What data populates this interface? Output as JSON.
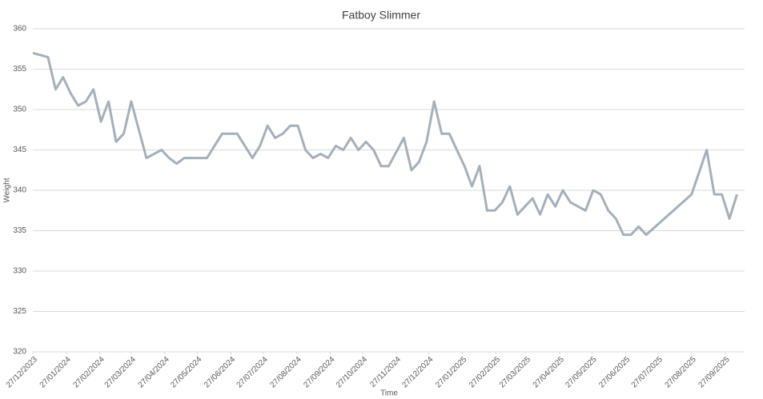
{
  "chart_data": {
    "type": "line",
    "title": "Fatboy Slimmer",
    "x_label": "Time",
    "y_label": "Weight",
    "x": [
      "27/12/2023",
      "10/01/2024",
      "17/01/2024",
      "24/01/2024",
      "31/01/2024",
      "07/02/2024",
      "14/02/2024",
      "21/02/2024",
      "28/02/2024",
      "06/03/2024",
      "13/03/2024",
      "20/03/2024",
      "27/03/2024",
      "10/04/2024",
      "24/04/2024",
      "01/05/2024",
      "08/05/2024",
      "15/05/2024",
      "05/06/2024",
      "19/06/2024",
      "03/07/2024",
      "17/07/2024",
      "24/07/2024",
      "31/07/2024",
      "07/08/2024",
      "14/08/2024",
      "21/08/2024",
      "28/08/2024",
      "04/09/2024",
      "11/09/2024",
      "18/09/2024",
      "25/09/2024",
      "02/10/2024",
      "09/10/2024",
      "16/10/2024",
      "23/10/2024",
      "30/10/2024",
      "06/11/2024",
      "13/11/2024",
      "20/11/2024",
      "04/12/2024",
      "11/12/2024",
      "18/12/2024",
      "25/12/2024",
      "01/01/2025",
      "08/01/2025",
      "15/01/2025",
      "29/01/2025",
      "05/02/2025",
      "12/02/2025",
      "19/02/2025",
      "26/02/2025",
      "05/03/2025",
      "12/03/2025",
      "19/03/2025",
      "26/03/2025",
      "02/04/2025",
      "09/04/2025",
      "16/04/2025",
      "23/04/2025",
      "30/04/2025",
      "07/05/2025",
      "21/05/2025",
      "28/05/2025",
      "04/06/2025",
      "11/06/2025",
      "18/06/2025",
      "25/06/2025",
      "02/07/2025",
      "09/07/2025",
      "16/07/2025",
      "27/08/2025",
      "10/09/2025",
      "17/09/2025",
      "24/09/2025",
      "01/10/2025",
      "08/10/2025"
    ],
    "series": [
      {
        "name": "Weight",
        "color": "#a5b0bb",
        "values": [
          357,
          356.5,
          352.5,
          354,
          352,
          350.5,
          351,
          352.5,
          348.5,
          351,
          346,
          347,
          351,
          344,
          345,
          344,
          343.3,
          344,
          344,
          347,
          347,
          344,
          345.5,
          348,
          346.5,
          347,
          348,
          348,
          345,
          344,
          344.5,
          344,
          345.5,
          345,
          346.5,
          345,
          346,
          345,
          343,
          343,
          346.5,
          342.5,
          343.5,
          346,
          351,
          347,
          347,
          343,
          340.5,
          343,
          337.5,
          337.5,
          338.5,
          340.5,
          337,
          338,
          339,
          337,
          339.5,
          338,
          340,
          338.5,
          337.5,
          340,
          339.5,
          337.5,
          336.5,
          334.5,
          334.5,
          335.5,
          334.5,
          339.5,
          345,
          339.5,
          339.5,
          336.5,
          339.5
        ]
      }
    ],
    "xlim": [
      "27/12/2023",
      "15/10/2025"
    ],
    "xticks": [
      "27/12/2023",
      "27/01/2024",
      "27/02/2024",
      "27/03/2024",
      "27/04/2024",
      "27/05/2024",
      "27/06/2024",
      "27/07/2024",
      "27/08/2024",
      "27/09/2024",
      "27/10/2024",
      "27/11/2024",
      "27/12/2024",
      "27/01/2025",
      "27/02/2025",
      "27/03/2025",
      "27/04/2025",
      "27/05/2025",
      "27/06/2025",
      "27/07/2025",
      "27/08/2025",
      "27/09/2025"
    ],
    "ylim": [
      320,
      360
    ],
    "yticks": [
      320,
      325,
      330,
      335,
      340,
      345,
      350,
      355,
      360
    ],
    "grid": true
  }
}
